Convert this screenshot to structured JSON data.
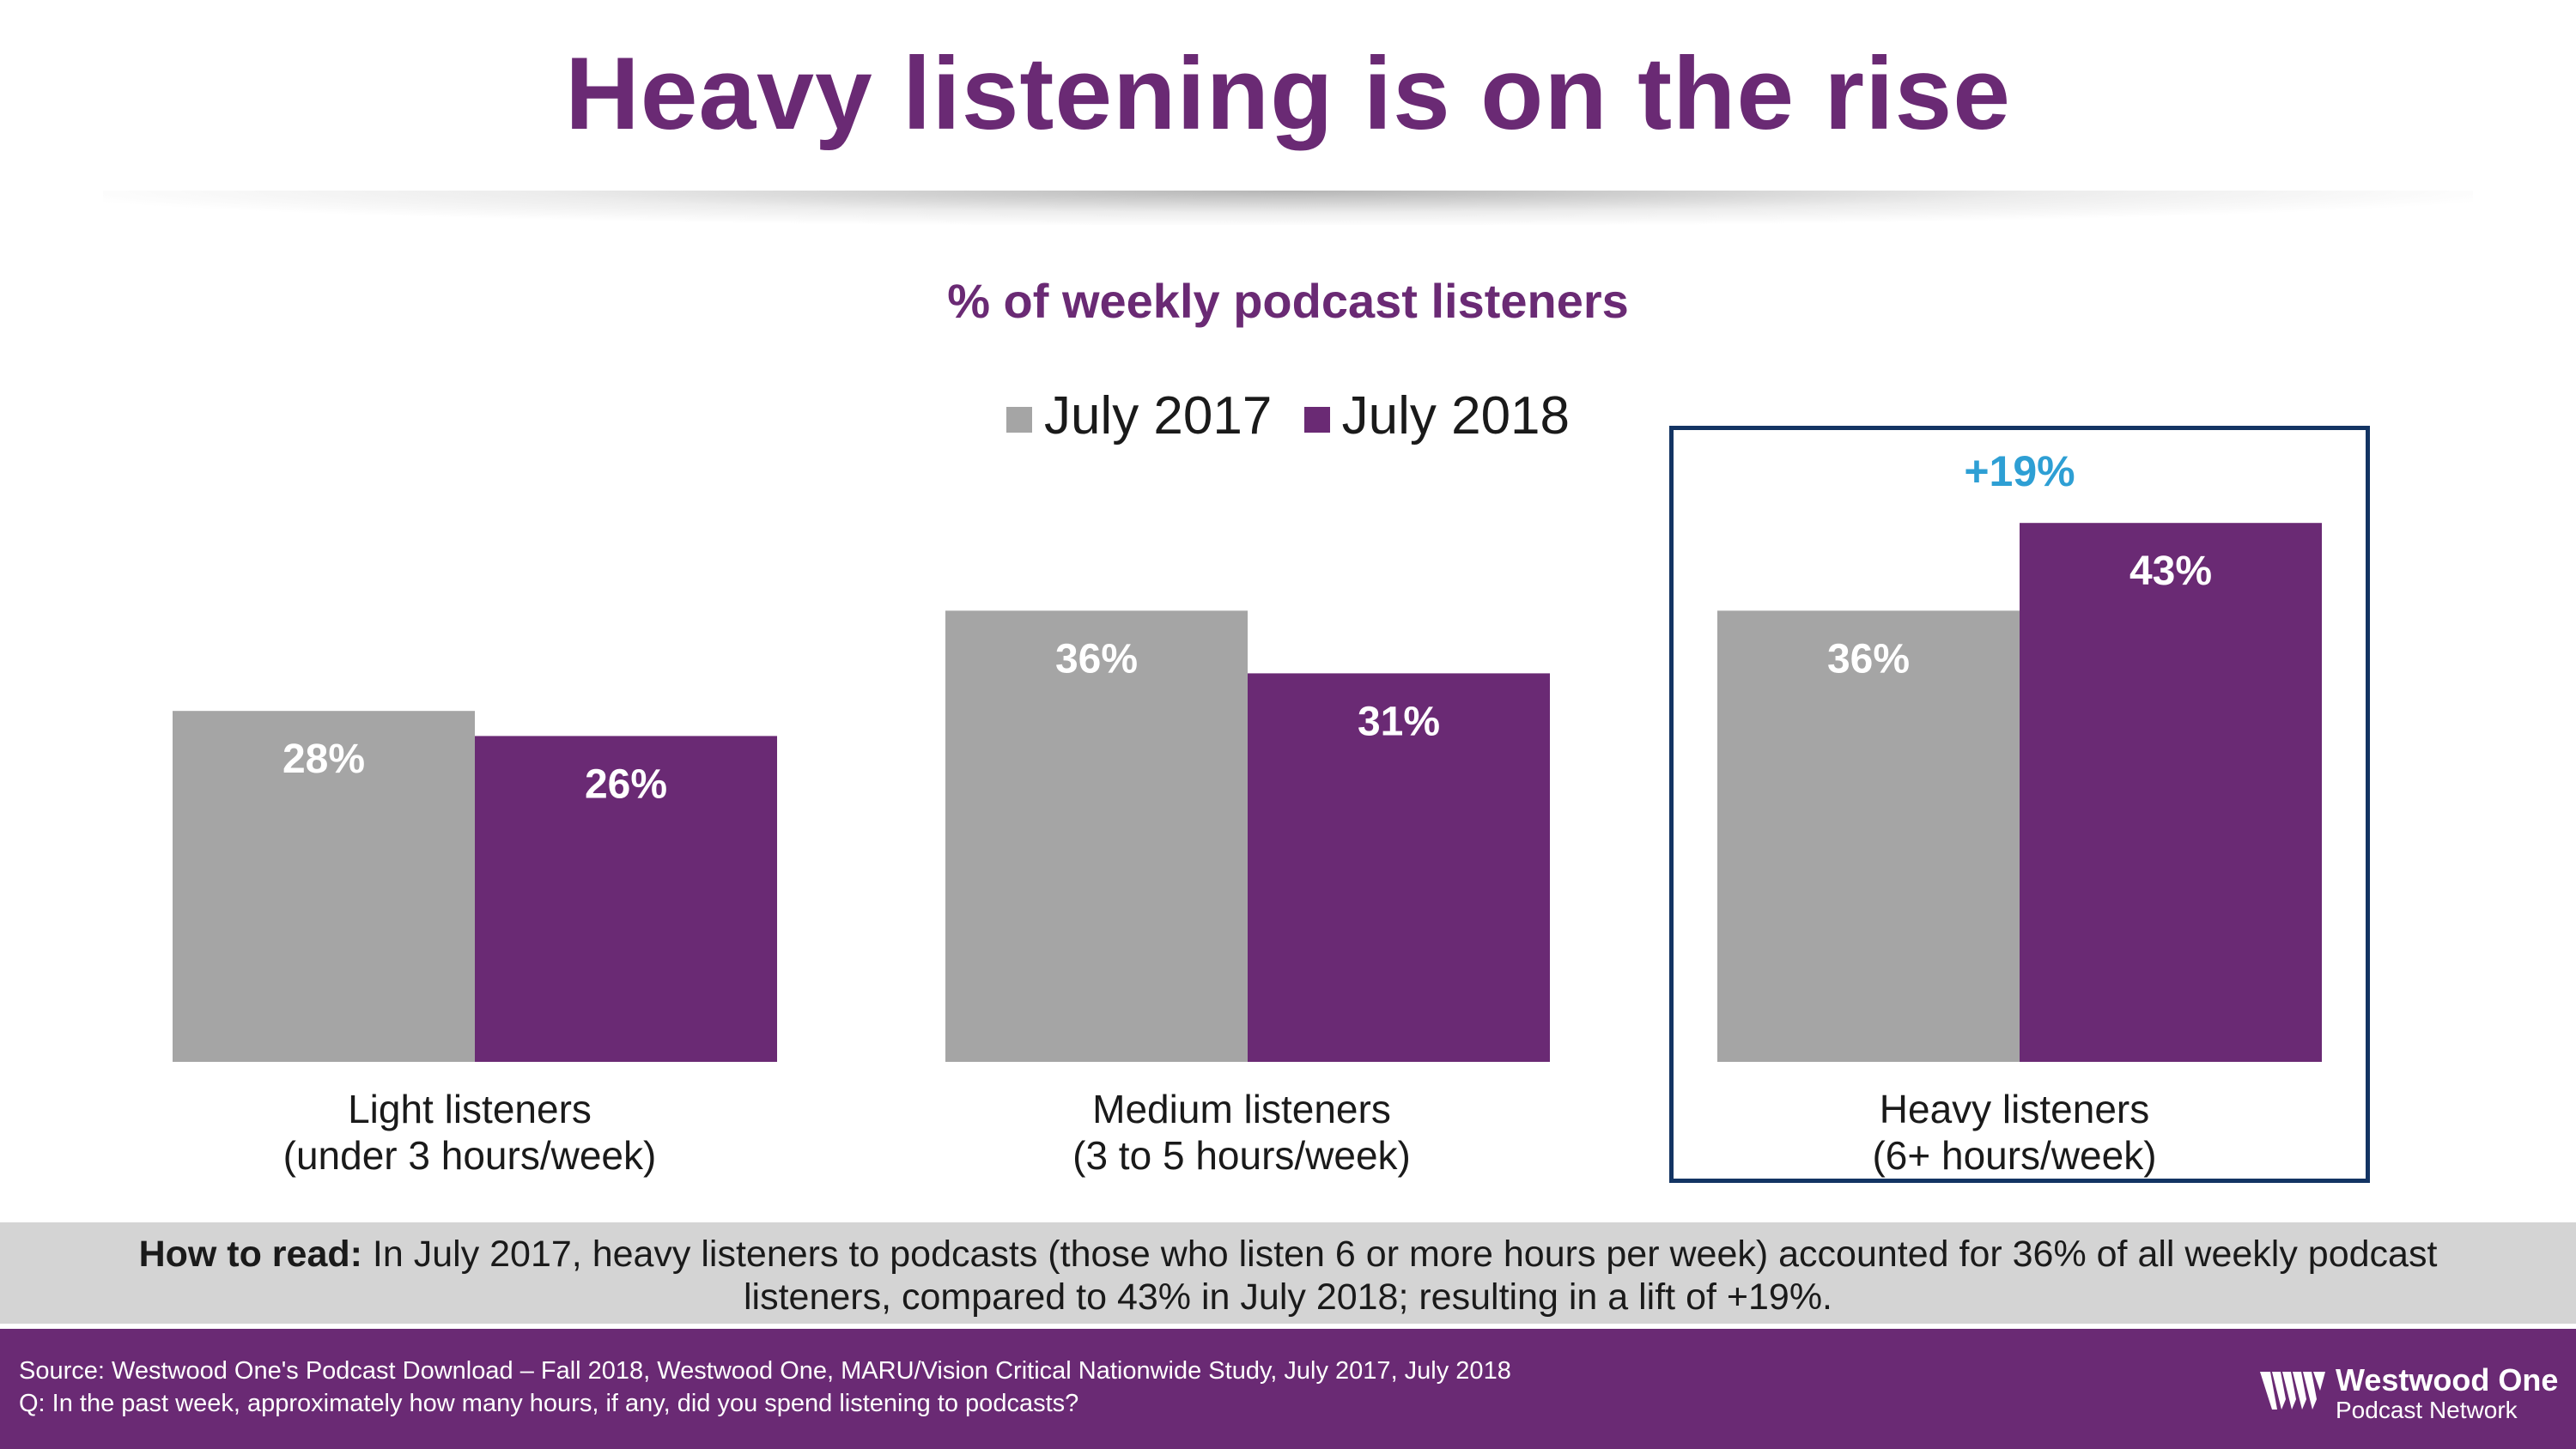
{
  "title": "Heavy listening is on the rise",
  "chart_data": {
    "type": "bar",
    "title": "% of weekly podcast listeners",
    "categories": [
      [
        "Light listeners",
        "(under 3 hours/week)"
      ],
      [
        "Medium listeners",
        "(3 to 5 hours/week)"
      ],
      [
        "Heavy listeners",
        "(6+ hours/week)"
      ]
    ],
    "series": [
      {
        "name": "July 2017",
        "values": [
          28,
          36,
          36
        ],
        "labels": [
          "28%",
          "36%",
          "36%"
        ],
        "color": "#a5a5a5"
      },
      {
        "name": "July 2018",
        "values": [
          26,
          31,
          43
        ],
        "labels": [
          "26%",
          "31%",
          "43%"
        ],
        "color": "#6a2a74"
      }
    ],
    "ylim": [
      0,
      50
    ],
    "highlight": {
      "category": "Heavy listeners",
      "change_label": "+19%",
      "change_color": "#2e9fd4",
      "box_color": "#133463"
    }
  },
  "how_to_read": {
    "label": "How to read:",
    "text": " In July 2017, heavy listeners to podcasts (those who listen 6 or more hours per week) accounted for 36% of all weekly podcast listeners, compared to 43% in July 2018; resulting in a lift of +19%."
  },
  "footer": {
    "source_line1": "Source: Westwood One's Podcast Download – Fall 2018, Westwood One, MARU/Vision Critical Nationwide Study, July 2017, July 2018",
    "source_line2": "Q: In the past week, approximately how many hours, if any, did you spend listening to podcasts?",
    "logo_name": "Westwood One",
    "logo_sub": "Podcast Network"
  },
  "colors": {
    "brand": "#6a2a74",
    "gray": "#a5a5a5",
    "accent": "#2e9fd4",
    "navy": "#133463"
  }
}
